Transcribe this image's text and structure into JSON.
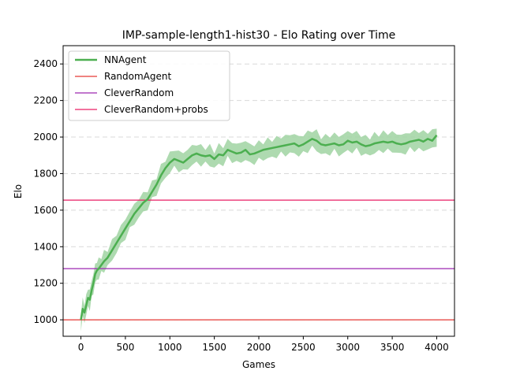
{
  "chart_data": {
    "type": "line",
    "title": "IMP-sample-length1-hist30 - Elo Rating over Time",
    "xlabel": "Games",
    "ylabel": "Elo",
    "xlim": [
      -200,
      4200
    ],
    "ylim": [
      910,
      2500
    ],
    "xticks": [
      0,
      500,
      1000,
      1500,
      2000,
      2500,
      3000,
      3500,
      4000
    ],
    "yticks": [
      1000,
      1200,
      1400,
      1600,
      1800,
      2000,
      2200,
      2400
    ],
    "grid": "y-dashed",
    "legend_position": "top-left",
    "series": [
      {
        "name": "NNAgent",
        "color": "#4caf50",
        "band_color": "#a5d6a7",
        "band_width": 45,
        "x": [
          0,
          20,
          40,
          60,
          80,
          100,
          120,
          140,
          160,
          180,
          200,
          230,
          260,
          300,
          350,
          400,
          450,
          500,
          550,
          600,
          650,
          700,
          750,
          800,
          850,
          900,
          950,
          1000,
          1050,
          1100,
          1150,
          1200,
          1250,
          1300,
          1350,
          1400,
          1450,
          1500,
          1550,
          1600,
          1650,
          1700,
          1750,
          1800,
          1850,
          1900,
          1950,
          2000,
          2050,
          2100,
          2150,
          2200,
          2250,
          2300,
          2350,
          2400,
          2450,
          2500,
          2550,
          2600,
          2650,
          2700,
          2750,
          2800,
          2850,
          2900,
          2950,
          3000,
          3050,
          3100,
          3150,
          3200,
          3250,
          3300,
          3350,
          3400,
          3450,
          3500,
          3550,
          3600,
          3650,
          3700,
          3750,
          3800,
          3850,
          3900,
          3950,
          4000
        ],
        "values": [
          1000,
          1060,
          1040,
          1080,
          1120,
          1110,
          1160,
          1200,
          1250,
          1270,
          1280,
          1300,
          1320,
          1340,
          1380,
          1420,
          1460,
          1500,
          1540,
          1580,
          1610,
          1640,
          1660,
          1700,
          1740,
          1790,
          1830,
          1860,
          1880,
          1870,
          1860,
          1880,
          1900,
          1910,
          1900,
          1895,
          1900,
          1880,
          1905,
          1900,
          1930,
          1920,
          1910,
          1915,
          1930,
          1905,
          1910,
          1920,
          1930,
          1935,
          1940,
          1945,
          1950,
          1955,
          1960,
          1965,
          1950,
          1960,
          1975,
          1990,
          1980,
          1960,
          1955,
          1960,
          1965,
          1955,
          1960,
          1980,
          1970,
          1975,
          1960,
          1950,
          1955,
          1965,
          1970,
          1975,
          1970,
          1975,
          1965,
          1960,
          1965,
          1975,
          1980,
          1985,
          1975,
          1990,
          1980,
          2010
        ]
      },
      {
        "name": "RandomAgent",
        "color": "#e53935",
        "type": "hline",
        "y": 1000
      },
      {
        "name": "CleverRandom",
        "color": "#9c27b0",
        "type": "hline",
        "y": 1280
      },
      {
        "name": "CleverRandom+probs",
        "color": "#e91e63",
        "type": "hline",
        "y": 1655
      }
    ]
  }
}
